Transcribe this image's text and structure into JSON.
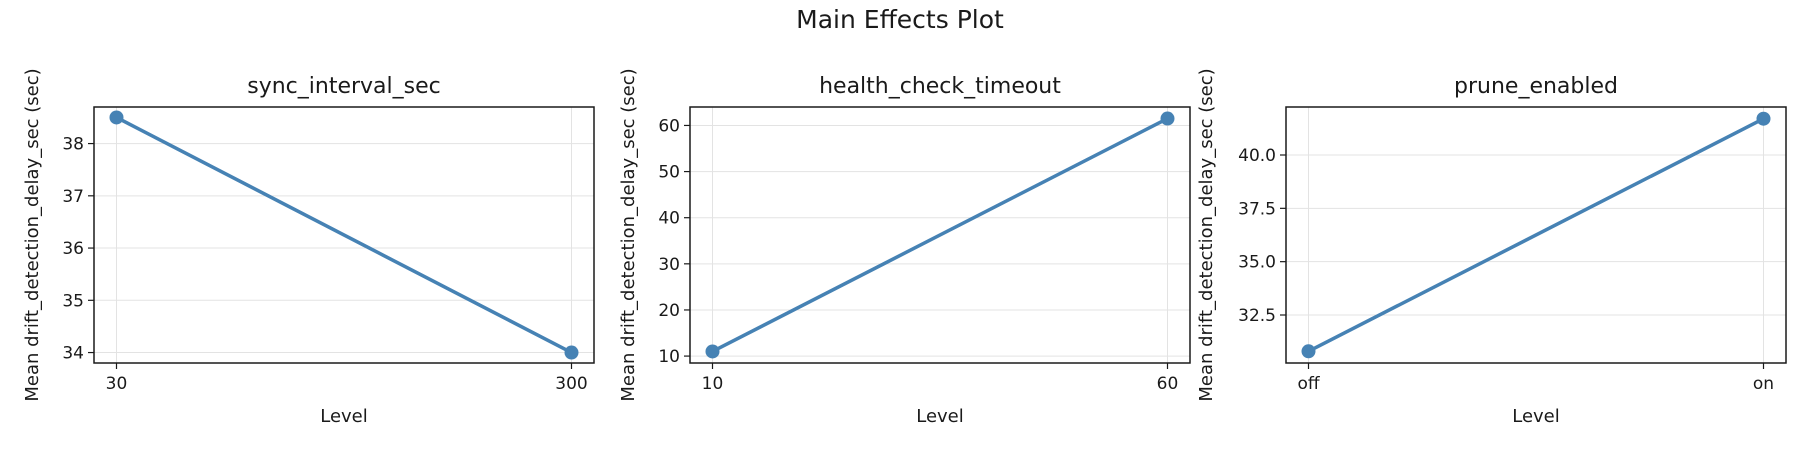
{
  "figure": {
    "title": "Main Effects Plot",
    "line_color": "#4682b4"
  },
  "chart_data": [
    {
      "type": "line",
      "title": "sync_interval_sec",
      "xlabel": "Level",
      "ylabel": "Mean drift_detection_delay_sec (sec)",
      "categories": [
        "30",
        "300"
      ],
      "values": [
        38.5,
        34.0
      ],
      "ylim": [
        33.8,
        38.7
      ],
      "yticks": [
        34,
        35,
        36,
        37,
        38
      ],
      "ytick_labels": [
        "34",
        "35",
        "36",
        "37",
        "38"
      ],
      "grid": true
    },
    {
      "type": "line",
      "title": "health_check_timeout",
      "xlabel": "Level",
      "ylabel": "Mean drift_detection_delay_sec (sec)",
      "categories": [
        "10",
        "60"
      ],
      "values": [
        11.0,
        61.5
      ],
      "ylim": [
        8.5,
        64.0
      ],
      "yticks": [
        10,
        20,
        30,
        40,
        50,
        60
      ],
      "ytick_labels": [
        "10",
        "20",
        "30",
        "40",
        "50",
        "60"
      ],
      "grid": true
    },
    {
      "type": "line",
      "title": "prune_enabled",
      "xlabel": "Level",
      "ylabel": "Mean drift_detection_delay_sec (sec)",
      "categories": [
        "off",
        "on"
      ],
      "values": [
        30.8,
        41.7
      ],
      "ylim": [
        30.25,
        42.25
      ],
      "yticks": [
        32.5,
        35.0,
        37.5,
        40.0
      ],
      "ytick_labels": [
        "32.5",
        "35.0",
        "37.5",
        "40.0"
      ],
      "grid": true
    }
  ]
}
